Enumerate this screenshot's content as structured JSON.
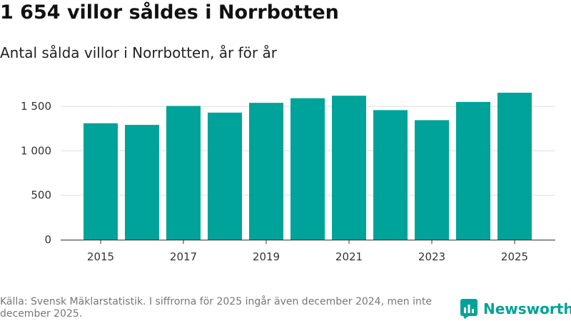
{
  "header": {
    "title": "1 654 villor såldes i Norrbotten",
    "subtitle": "Antal sålda villor i Norrbotten, år för år"
  },
  "footer": {
    "source": "Källa: Svensk Mäklarstatistik. I siffrorna för 2025 ingår även december 2024, men inte december 2025.",
    "brand": "Newsworthy",
    "brand_icon": "newsworthy-logo-icon"
  },
  "colors": {
    "bar": "#00a399",
    "grid": "#dddddd",
    "axis": "#333333",
    "brand": "#00a399"
  },
  "chart_data": {
    "type": "bar",
    "title": "1 654 villor såldes i Norrbotten",
    "subtitle": "Antal sålda villor i Norrbotten, år för år",
    "xlabel": "",
    "ylabel": "",
    "categories": [
      "2015",
      "2016",
      "2017",
      "2018",
      "2019",
      "2020",
      "2021",
      "2022",
      "2023",
      "2024",
      "2025"
    ],
    "values": [
      1310,
      1292,
      1505,
      1430,
      1540,
      1592,
      1620,
      1458,
      1345,
      1550,
      1654
    ],
    "ylim": [
      0,
      1750
    ],
    "yticks": [
      0,
      500,
      1000,
      1500
    ],
    "ytick_labels": [
      "0",
      "500",
      "1 000",
      "1 500"
    ],
    "xtick_labels": [
      "2015",
      "",
      "2017",
      "",
      "2019",
      "",
      "2021",
      "",
      "2023",
      "",
      "2025"
    ],
    "grid": true
  }
}
